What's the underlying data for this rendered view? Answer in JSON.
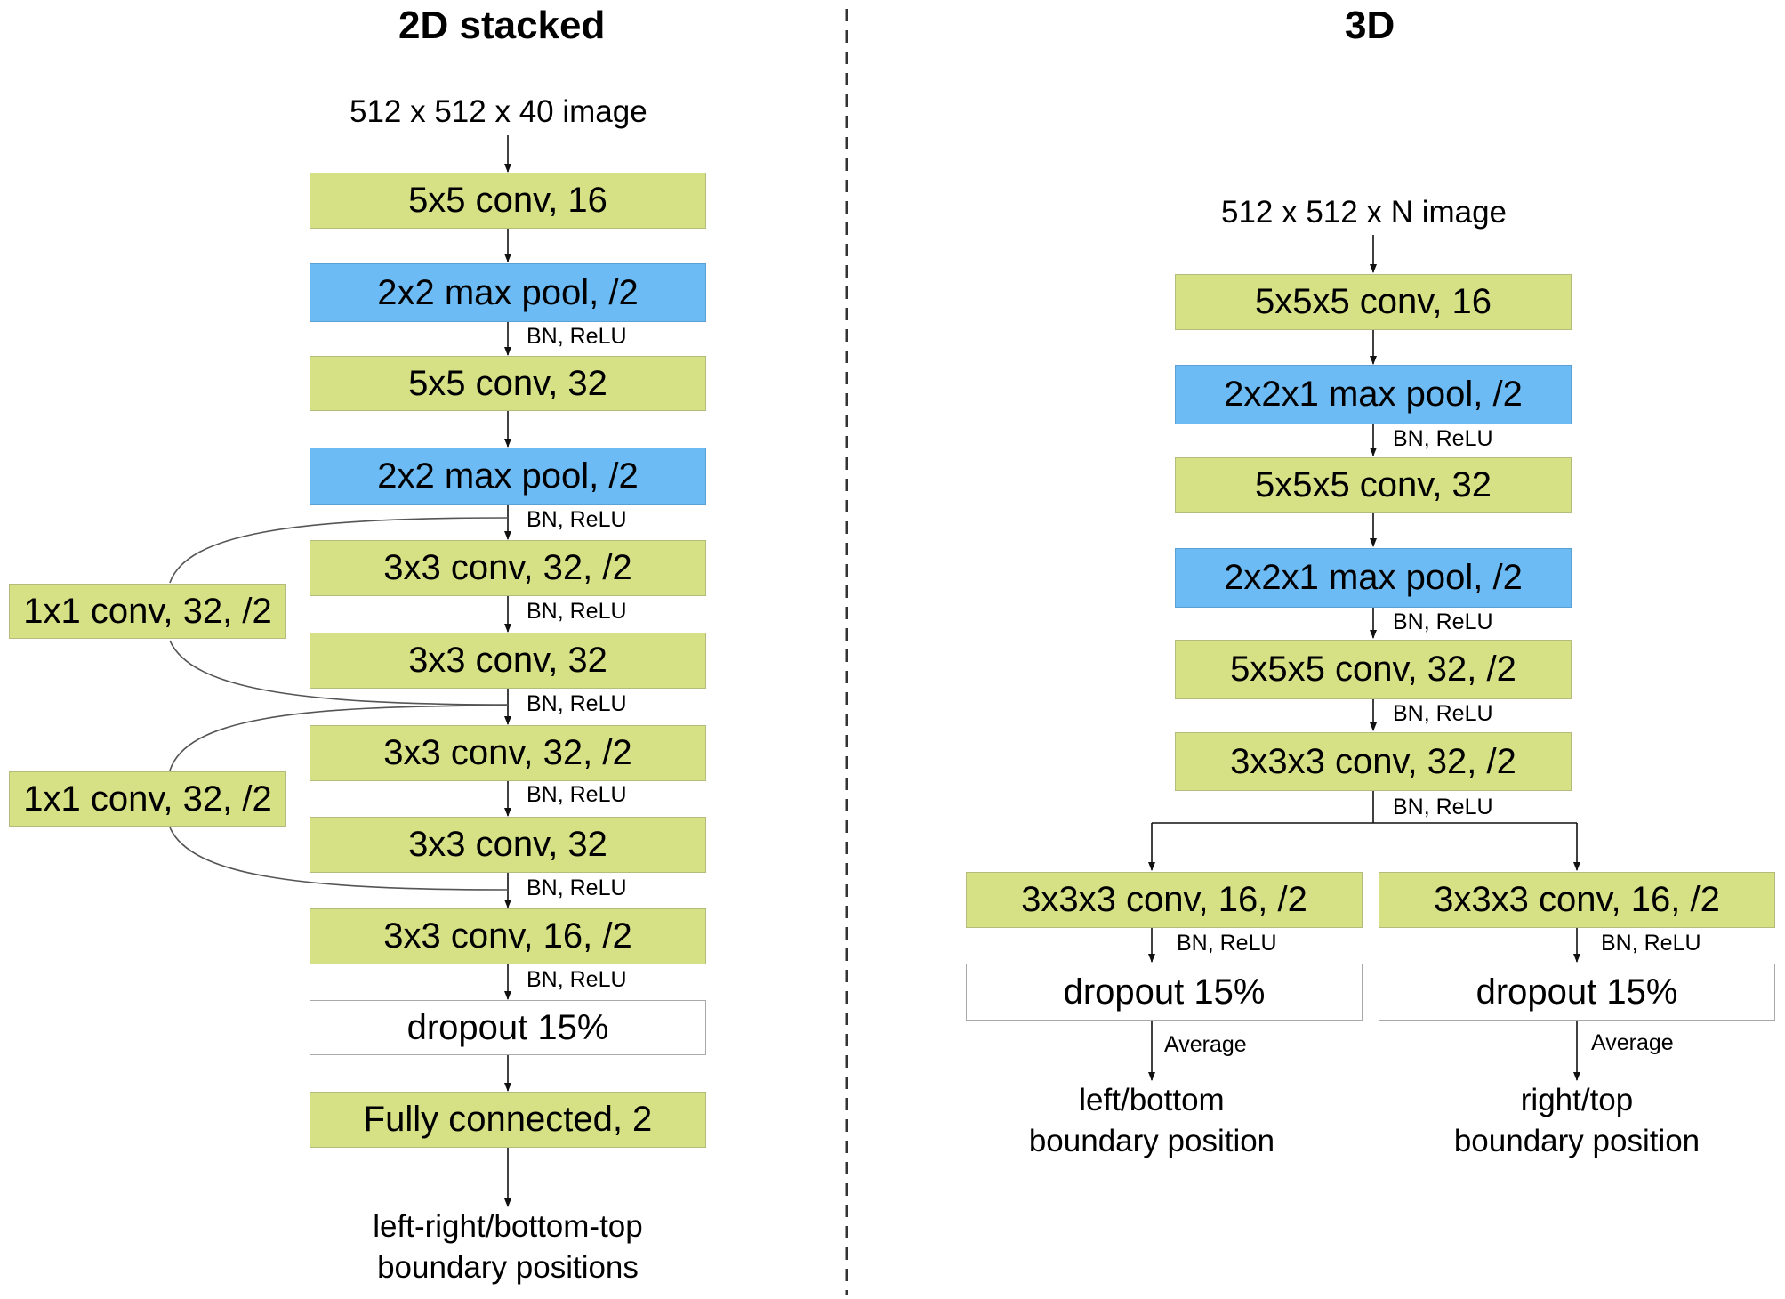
{
  "left": {
    "title": "2D stacked",
    "input": "512 x 512 x 40 image",
    "blocks": {
      "b1": "5x5 conv, 16",
      "b2": "2x2 max pool, /2",
      "b3": "5x5 conv, 32",
      "b4": "2x2 max pool, /2",
      "b5": "3x3 conv, 32, /2",
      "b6": "3x3 conv, 32",
      "b7": "3x3 conv, 32, /2",
      "b8": "3x3 conv, 32",
      "b9": "3x3 conv, 16, /2",
      "b10": "dropout 15%",
      "b11": "Fully connected, 2"
    },
    "skips": {
      "s1": "1x1 conv, 32, /2",
      "s2": "1x1 conv, 32, /2"
    },
    "edge_labels": {
      "l1": "BN, ReLU",
      "l2": "BN, ReLU",
      "l3": "BN, ReLU",
      "l4": "BN, ReLU",
      "l5": "BN, ReLU",
      "l6": "BN, ReLU",
      "l7": "BN, ReLU"
    },
    "output": {
      "line1": "left-right/bottom-top",
      "line2": "boundary positions"
    }
  },
  "right": {
    "title": "3D",
    "input": "512 x 512 x N image",
    "blocks": {
      "b1": "5x5x5 conv, 16",
      "b2": "2x2x1 max pool, /2",
      "b3": "5x5x5 conv, 32",
      "b4": "2x2x1 max pool, /2",
      "b5": "5x5x5 conv, 32, /2",
      "b6": "3x3x3 conv, 32, /2"
    },
    "edge_labels": {
      "l1": "BN, ReLU",
      "l2": "BN, ReLU",
      "l3": "BN, ReLU",
      "l4": "BN, ReLU"
    },
    "branch_left": {
      "conv": "3x3x3 conv, 16, /2",
      "label": "BN, ReLU",
      "dropout": "dropout 15%",
      "avg": "Average",
      "out1": "left/bottom",
      "out2": "boundary position"
    },
    "branch_right": {
      "conv": "3x3x3 conv, 16, /2",
      "label": "BN, ReLU",
      "dropout": "dropout 15%",
      "avg": "Average",
      "out1": "right/top",
      "out2": "boundary position"
    }
  },
  "colors": {
    "conv": "#d6e084",
    "pool": "#6cbbf4",
    "dropout": "#ffffff",
    "divider": "#333333"
  }
}
